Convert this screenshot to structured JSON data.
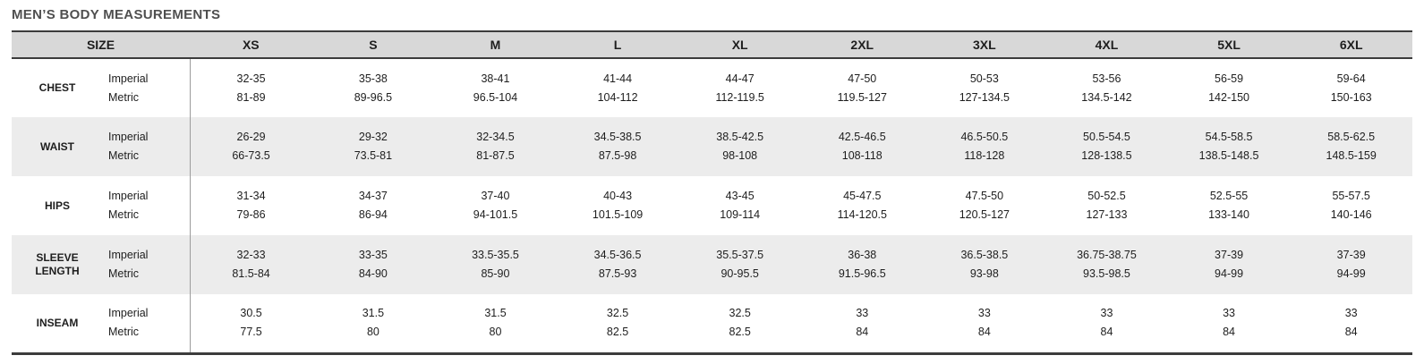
{
  "title": "MEN’S BODY MEASUREMENTS",
  "chart_data": {
    "type": "table",
    "title": "MEN’S BODY MEASUREMENTS",
    "size_header": "SIZE",
    "columns": [
      "XS",
      "S",
      "M",
      "L",
      "XL",
      "2XL",
      "3XL",
      "4XL",
      "5XL",
      "6XL"
    ],
    "unit_labels": [
      "Imperial",
      "Metric"
    ],
    "rows": [
      {
        "label": "CHEST",
        "imperial": [
          "32-35",
          "35-38",
          "38-41",
          "41-44",
          "44-47",
          "47-50",
          "50-53",
          "53-56",
          "56-59",
          "59-64"
        ],
        "metric": [
          "81-89",
          "89-96.5",
          "96.5-104",
          "104-112",
          "112-119.5",
          "119.5-127",
          "127-134.5",
          "134.5-142",
          "142-150",
          "150-163"
        ]
      },
      {
        "label": "WAIST",
        "imperial": [
          "26-29",
          "29-32",
          "32-34.5",
          "34.5-38.5",
          "38.5-42.5",
          "42.5-46.5",
          "46.5-50.5",
          "50.5-54.5",
          "54.5-58.5",
          "58.5-62.5"
        ],
        "metric": [
          "66-73.5",
          "73.5-81",
          "81-87.5",
          "87.5-98",
          "98-108",
          "108-118",
          "118-128",
          "128-138.5",
          "138.5-148.5",
          "148.5-159"
        ]
      },
      {
        "label": "HIPS",
        "imperial": [
          "31-34",
          "34-37",
          "37-40",
          "40-43",
          "43-45",
          "45-47.5",
          "47.5-50",
          "50-52.5",
          "52.5-55",
          "55-57.5"
        ],
        "metric": [
          "79-86",
          "86-94",
          "94-101.5",
          "101.5-109",
          "109-114",
          "114-120.5",
          "120.5-127",
          "127-133",
          "133-140",
          "140-146"
        ]
      },
      {
        "label": "SLEEVE LENGTH",
        "imperial": [
          "32-33",
          "33-35",
          "33.5-35.5",
          "34.5-36.5",
          "35.5-37.5",
          "36-38",
          "36.5-38.5",
          "36.75-38.75",
          "37-39",
          "37-39"
        ],
        "metric": [
          "81.5-84",
          "84-90",
          "85-90",
          "87.5-93",
          "90-95.5",
          "91.5-96.5",
          "93-98",
          "93.5-98.5",
          "94-99",
          "94-99"
        ]
      },
      {
        "label": "INSEAM",
        "imperial": [
          "30.5",
          "31.5",
          "31.5",
          "32.5",
          "32.5",
          "33",
          "33",
          "33",
          "33",
          "33"
        ],
        "metric": [
          "77.5",
          "80",
          "80",
          "82.5",
          "82.5",
          "84",
          "84",
          "84",
          "84",
          "84"
        ]
      }
    ]
  },
  "colors": {
    "header_bg": "#d8d8d8",
    "stripe_bg": "#ececec",
    "border_dark": "#3c3c3c",
    "divider": "#9c9c9c",
    "title_text": "#4f4f4f",
    "body_text": "#1e1e1e"
  }
}
